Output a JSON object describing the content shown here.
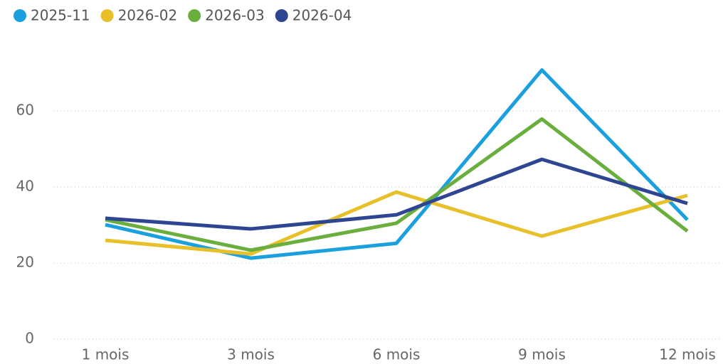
{
  "chart_data": {
    "type": "line",
    "categories": [
      "1 mois",
      "3 mois",
      "6 mois",
      "9 mois",
      "12 mois"
    ],
    "series": [
      {
        "name": "2025-11",
        "color": "#1a9fdf",
        "values": [
          30.1,
          21.3,
          25.2,
          70.8,
          31.4
        ]
      },
      {
        "name": "2026-02",
        "color": "#e8c02a",
        "values": [
          26.0,
          22.4,
          38.7,
          27.1,
          37.8
        ]
      },
      {
        "name": "2026-03",
        "color": "#6aaf3d",
        "values": [
          31.4,
          23.4,
          30.5,
          57.9,
          28.4
        ]
      },
      {
        "name": "2026-04",
        "color": "#2e4592",
        "values": [
          31.8,
          29.0,
          32.7,
          47.3,
          35.7
        ]
      }
    ],
    "ylim": [
      0,
      75
    ],
    "yticks": [
      0,
      20,
      40,
      60
    ],
    "grid": true,
    "legend": "top-left"
  }
}
